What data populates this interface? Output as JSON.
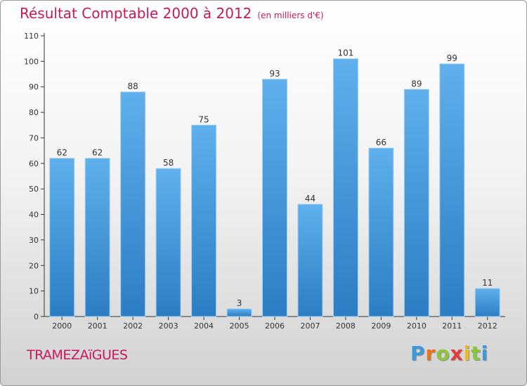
{
  "chart_data": {
    "type": "bar",
    "title": "Résultat Comptable 2000 à 2012",
    "subtitle": "(en milliers d'€)",
    "categories": [
      "2000",
      "2001",
      "2002",
      "2003",
      "2004",
      "2005",
      "2006",
      "2007",
      "2008",
      "2009",
      "2010",
      "2011",
      "2012"
    ],
    "values": [
      62,
      62,
      88,
      58,
      75,
      3,
      93,
      44,
      101,
      66,
      89,
      99,
      11
    ],
    "ylim": [
      0,
      110
    ],
    "yticks": [
      0,
      10,
      20,
      30,
      40,
      50,
      60,
      70,
      80,
      90,
      100,
      110
    ],
    "xlabel": "",
    "ylabel": "",
    "grid": false,
    "bar_color": "#4a9fe0"
  },
  "footer": {
    "commune": "TRAMEZAïGUES",
    "logo_letters": [
      "P",
      "r",
      "o",
      "x",
      "i",
      "t",
      "i"
    ],
    "logo_colors": [
      "#3a9ad9",
      "#e8731c",
      "#8cc63f",
      "#e23b3b",
      "#f2b71f",
      "#8cc63f",
      "#3a9ad9"
    ]
  },
  "colors": {
    "title": "#c8185a",
    "axis": "#333333",
    "label": "#333333"
  }
}
